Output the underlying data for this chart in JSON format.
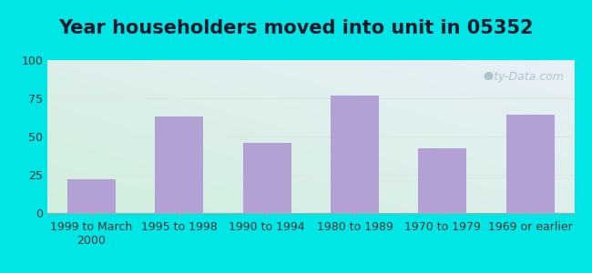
{
  "title": "Year householders moved into unit in 05352",
  "categories": [
    "1999 to March\n2000",
    "1995 to 1998",
    "1990 to 1994",
    "1980 to 1989",
    "1970 to 1979",
    "1969 or earlier"
  ],
  "values": [
    22,
    63,
    46,
    77,
    42,
    64
  ],
  "bar_color": "#b3a0d4",
  "ylim": [
    0,
    100
  ],
  "yticks": [
    0,
    25,
    50,
    75,
    100
  ],
  "background_outer": "#00e5e5",
  "bg_color_top_right": "#e8f0f8",
  "bg_color_bottom_left": "#d0eedc",
  "grid_color": "#dde8dd",
  "title_fontsize": 15,
  "tick_fontsize": 9,
  "watermark_text": "City-Data.com",
  "watermark_color": "#a8c0c8",
  "title_color": "#1a1a2e"
}
